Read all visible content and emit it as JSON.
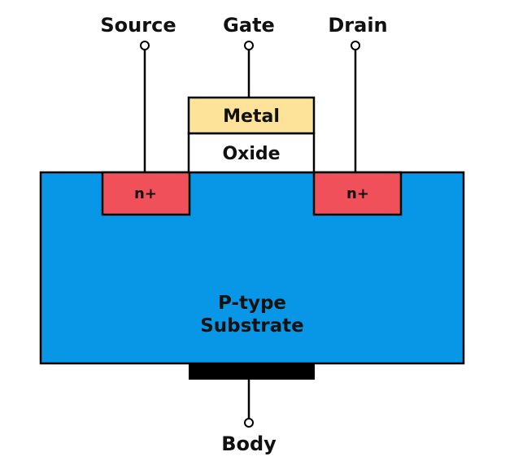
{
  "terminals": {
    "source": "Source",
    "gate": "Gate",
    "drain": "Drain",
    "body": "Body"
  },
  "layers": {
    "metal": "Metal",
    "oxide": "Oxide"
  },
  "regions": {
    "source_doping": "n+",
    "drain_doping": "n+"
  },
  "substrate": {
    "line1": "P-type",
    "line2": "Substrate"
  },
  "colors": {
    "substrate": "#0897e6",
    "n_region": "#f0505a",
    "metal": "#fde39a",
    "oxide": "#ffffff",
    "body_contact": "#000000",
    "outline": "#000000"
  }
}
